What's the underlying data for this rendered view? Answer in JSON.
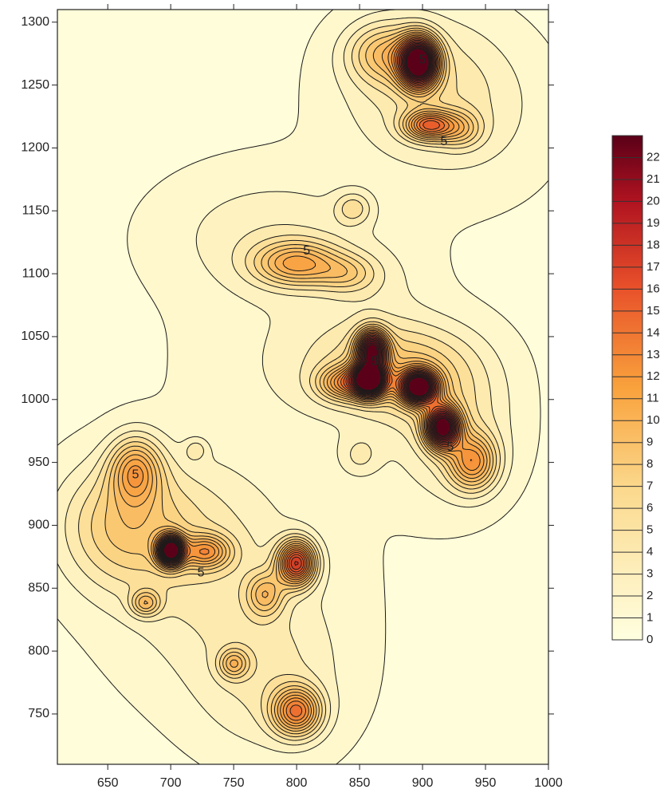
{
  "chart_data": {
    "type": "heatmap",
    "subtype": "filled-contour",
    "title": "",
    "xlabel": "",
    "ylabel": "",
    "xlim": [
      610,
      1000
    ],
    "ylim": [
      710,
      1310
    ],
    "x_ticks": [
      650,
      700,
      750,
      800,
      850,
      900,
      950,
      1000
    ],
    "y_ticks": [
      750,
      800,
      850,
      900,
      950,
      1000,
      1050,
      1100,
      1150,
      1200,
      1250,
      1300
    ],
    "colorbar": {
      "min": 0,
      "max": 23,
      "levels": [
        0,
        1,
        2,
        3,
        4,
        5,
        6,
        7,
        8,
        9,
        10,
        11,
        12,
        13,
        14,
        15,
        16,
        17,
        18,
        19,
        20,
        21,
        22
      ],
      "low_color": "#ffffe0",
      "mid_color": "#f9a23c",
      "high_color": "#5a0018",
      "placement": "right"
    },
    "contour_labels": [
      {
        "text": "5",
        "x": 808,
        "y": 1118
      },
      {
        "text": "5",
        "x": 672,
        "y": 940
      },
      {
        "text": "5",
        "x": 724,
        "y": 862
      },
      {
        "text": "5",
        "x": 862,
        "y": 1030
      },
      {
        "text": "5",
        "x": 900,
        "y": 1270
      },
      {
        "text": "5",
        "x": 917,
        "y": 1205
      },
      {
        "text": "5",
        "x": 922,
        "y": 962
      }
    ],
    "peaks": [
      {
        "x": 800,
        "y": 1108,
        "value": 7,
        "sx": 23,
        "sy": 12
      },
      {
        "x": 840,
        "y": 1100,
        "value": 3,
        "sx": 16,
        "sy": 10
      },
      {
        "x": 845,
        "y": 1152,
        "value": 3,
        "sx": 10,
        "sy": 9
      },
      {
        "x": 780,
        "y": 1130,
        "value": 2,
        "sx": 60,
        "sy": 35
      },
      {
        "x": 860,
        "y": 1095,
        "value": 1,
        "sx": 28,
        "sy": 20
      },
      {
        "x": 860,
        "y": 1040,
        "value": 18,
        "sx": 8,
        "sy": 10
      },
      {
        "x": 858,
        "y": 1016,
        "value": 23,
        "sx": 9,
        "sy": 9
      },
      {
        "x": 838,
        "y": 1013,
        "value": 7,
        "sx": 14,
        "sy": 9
      },
      {
        "x": 897,
        "y": 1010,
        "value": 22,
        "sx": 10,
        "sy": 9
      },
      {
        "x": 916,
        "y": 978,
        "value": 21,
        "sx": 9,
        "sy": 11
      },
      {
        "x": 940,
        "y": 950,
        "value": 8,
        "sx": 13,
        "sy": 15
      },
      {
        "x": 880,
        "y": 1025,
        "value": 5,
        "sx": 42,
        "sy": 26
      },
      {
        "x": 925,
        "y": 975,
        "value": 3,
        "sx": 32,
        "sy": 38
      },
      {
        "x": 800,
        "y": 1030,
        "value": 1,
        "sx": 60,
        "sy": 45
      },
      {
        "x": 897,
        "y": 1268,
        "value": 24,
        "sx": 10,
        "sy": 13
      },
      {
        "x": 870,
        "y": 1275,
        "value": 5,
        "sx": 20,
        "sy": 16
      },
      {
        "x": 905,
        "y": 1218,
        "value": 10,
        "sx": 13,
        "sy": 8
      },
      {
        "x": 930,
        "y": 1215,
        "value": 4,
        "sx": 12,
        "sy": 10
      },
      {
        "x": 900,
        "y": 1250,
        "value": 3,
        "sx": 45,
        "sy": 40
      },
      {
        "x": 950,
        "y": 1220,
        "value": 1,
        "sx": 45,
        "sy": 45
      },
      {
        "x": 700,
        "y": 880,
        "value": 22,
        "sx": 7,
        "sy": 8
      },
      {
        "x": 728,
        "y": 879,
        "value": 7,
        "sx": 13,
        "sy": 9
      },
      {
        "x": 672,
        "y": 944,
        "value": 7,
        "sx": 14,
        "sy": 18
      },
      {
        "x": 660,
        "y": 900,
        "value": 4,
        "sx": 34,
        "sy": 34
      },
      {
        "x": 800,
        "y": 870,
        "value": 14,
        "sx": 10,
        "sy": 12
      },
      {
        "x": 775,
        "y": 845,
        "value": 5,
        "sx": 10,
        "sy": 12
      },
      {
        "x": 680,
        "y": 838,
        "value": 5,
        "sx": 8,
        "sy": 7
      },
      {
        "x": 750,
        "y": 790,
        "value": 5,
        "sx": 8,
        "sy": 8
      },
      {
        "x": 800,
        "y": 752,
        "value": 10,
        "sx": 13,
        "sy": 13
      },
      {
        "x": 740,
        "y": 840,
        "value": 2,
        "sx": 60,
        "sy": 55
      },
      {
        "x": 700,
        "y": 900,
        "value": 2,
        "sx": 50,
        "sy": 40
      },
      {
        "x": 780,
        "y": 770,
        "value": 2,
        "sx": 40,
        "sy": 40
      },
      {
        "x": 850,
        "y": 955,
        "value": 2,
        "sx": 12,
        "sy": 12
      },
      {
        "x": 720,
        "y": 960,
        "value": 2,
        "sx": 6,
        "sy": 6
      }
    ]
  }
}
